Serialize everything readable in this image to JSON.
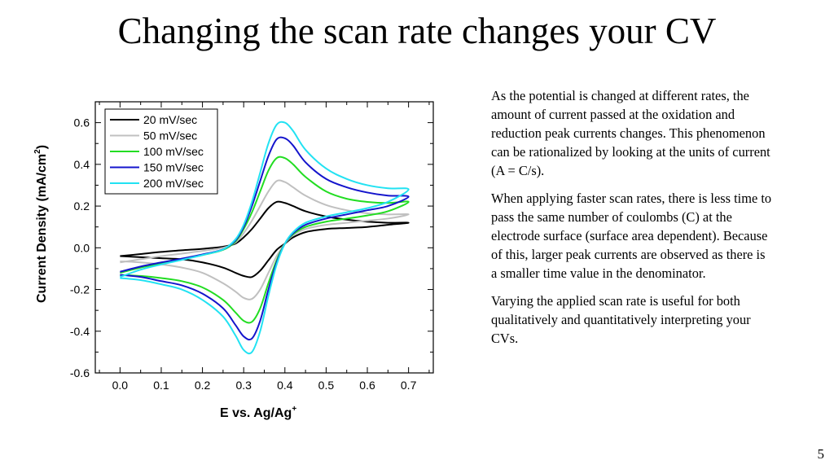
{
  "slide": {
    "title": "Changing the scan rate changes your CV",
    "paragraphs": [
      "As the potential is changed at different rates, the amount of current passed at the oxidation and reduction peak currents changes. This phenomenon can be rationalized by looking at the units of current (A = C/s).",
      "When applying faster scan rates, there is less time to pass the same number of coulombs (C) at the electrode surface (surface area dependent). Because of this, larger peak currents are observed as there is a smaller time value in the denominator.",
      "Varying the applied scan rate is useful for both qualitatively and quantitatively interpreting your CVs."
    ],
    "page_number": "5"
  },
  "chart_data": {
    "type": "line",
    "title": "",
    "xlabel": "E vs. Ag/Ag",
    "xlabel_sup": "+",
    "ylabel": "Current Density (mA/cm",
    "ylabel_sup": "2",
    "ylabel_end": ")",
    "xlim": [
      -0.06,
      0.76
    ],
    "ylim": [
      -0.6,
      0.7
    ],
    "xticks": [
      "0.0",
      "0.1",
      "0.2",
      "0.3",
      "0.4",
      "0.5",
      "0.6",
      "0.7"
    ],
    "yticks": [
      "0.6",
      "0.4",
      "0.2",
      "0.0",
      "-0.2",
      "-0.4",
      "-0.6"
    ],
    "legend_position": "top-left",
    "x": [
      0,
      0.05,
      0.1,
      0.15,
      0.2,
      0.25,
      0.28,
      0.3,
      0.32,
      0.34,
      0.36,
      0.38,
      0.4,
      0.42,
      0.45,
      0.5,
      0.55,
      0.6,
      0.65,
      0.7
    ],
    "series": [
      {
        "name": "20 mV/sec",
        "color": "#000000",
        "forward": [
          -0.04,
          -0.03,
          -0.02,
          -0.012,
          -0.005,
          0.005,
          0.02,
          0.05,
          0.09,
          0.14,
          0.19,
          0.22,
          0.215,
          0.2,
          0.175,
          0.15,
          0.135,
          0.125,
          0.12,
          0.12
        ],
        "reverse": [
          -0.04,
          -0.045,
          -0.05,
          -0.055,
          -0.07,
          -0.095,
          -0.12,
          -0.135,
          -0.14,
          -0.11,
          -0.06,
          -0.01,
          0.02,
          0.05,
          0.075,
          0.09,
          0.095,
          0.1,
          0.11,
          0.12
        ]
      },
      {
        "name": "50 mV/sec",
        "color": "#c0c0c0",
        "forward": [
          -0.07,
          -0.055,
          -0.04,
          -0.028,
          -0.015,
          0.0,
          0.025,
          0.07,
          0.13,
          0.2,
          0.27,
          0.32,
          0.315,
          0.29,
          0.25,
          0.205,
          0.18,
          0.165,
          0.16,
          0.16
        ],
        "reverse": [
          -0.065,
          -0.07,
          -0.08,
          -0.095,
          -0.12,
          -0.17,
          -0.21,
          -0.24,
          -0.245,
          -0.2,
          -0.12,
          -0.04,
          0.02,
          0.06,
          0.09,
          0.11,
          0.12,
          0.13,
          0.14,
          0.16
        ]
      },
      {
        "name": "100 mV/sec",
        "color": "#22dd22",
        "forward": [
          -0.12,
          -0.095,
          -0.075,
          -0.055,
          -0.035,
          -0.01,
          0.03,
          0.09,
          0.17,
          0.27,
          0.37,
          0.43,
          0.43,
          0.4,
          0.34,
          0.27,
          0.235,
          0.22,
          0.215,
          0.22
        ],
        "reverse": [
          -0.13,
          -0.135,
          -0.145,
          -0.16,
          -0.19,
          -0.25,
          -0.31,
          -0.35,
          -0.355,
          -0.29,
          -0.17,
          -0.06,
          0.02,
          0.065,
          0.1,
          0.125,
          0.14,
          0.155,
          0.175,
          0.22
        ]
      },
      {
        "name": "150 mV/sec",
        "color": "#1414cc",
        "forward": [
          -0.115,
          -0.09,
          -0.07,
          -0.052,
          -0.032,
          -0.008,
          0.035,
          0.1,
          0.2,
          0.32,
          0.44,
          0.52,
          0.525,
          0.49,
          0.41,
          0.33,
          0.29,
          0.265,
          0.25,
          0.245
        ],
        "reverse": [
          -0.13,
          -0.14,
          -0.16,
          -0.18,
          -0.22,
          -0.29,
          -0.37,
          -0.425,
          -0.435,
          -0.35,
          -0.2,
          -0.07,
          0.02,
          0.07,
          0.11,
          0.14,
          0.16,
          0.18,
          0.2,
          0.245
        ]
      },
      {
        "name": "200 mV/sec",
        "color": "#22e2f2",
        "forward": [
          -0.14,
          -0.105,
          -0.08,
          -0.058,
          -0.035,
          -0.008,
          0.04,
          0.11,
          0.22,
          0.36,
          0.5,
          0.59,
          0.6,
          0.56,
          0.47,
          0.38,
          0.33,
          0.3,
          0.285,
          0.28
        ],
        "reverse": [
          -0.145,
          -0.155,
          -0.175,
          -0.2,
          -0.25,
          -0.33,
          -0.42,
          -0.49,
          -0.5,
          -0.4,
          -0.23,
          -0.08,
          0.02,
          0.075,
          0.12,
          0.15,
          0.17,
          0.19,
          0.22,
          0.28
        ]
      }
    ]
  }
}
